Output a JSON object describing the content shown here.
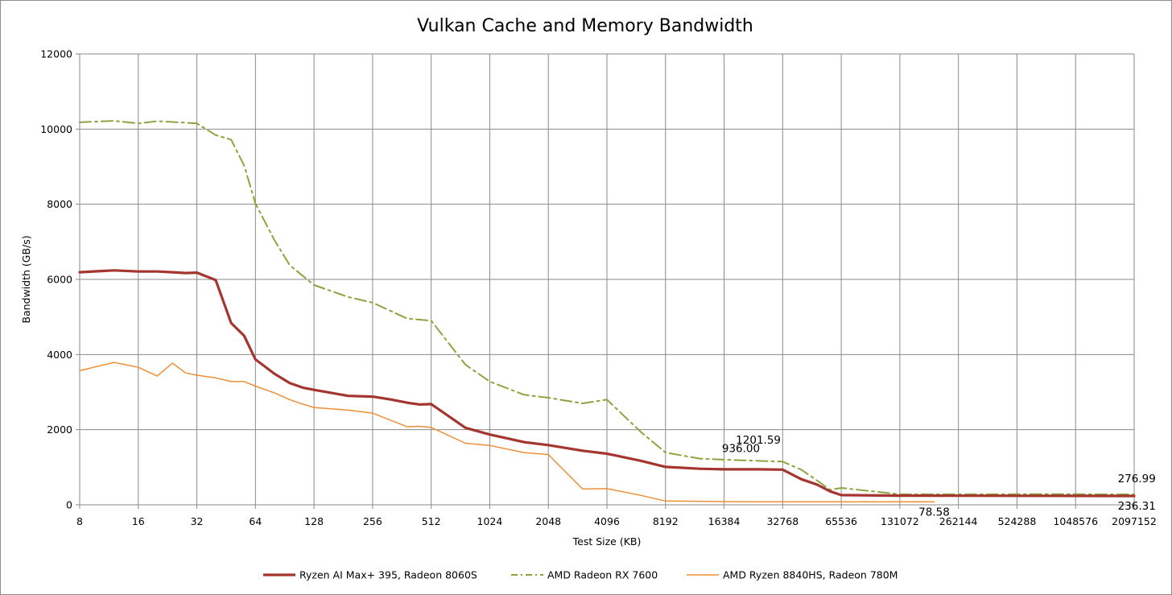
{
  "chart_data": {
    "type": "line",
    "title": "Vulkan Cache and Memory Bandwidth",
    "xlabel": "Test Size (KB)",
    "ylabel": "Bandwidth (GB/s)",
    "xscale": "log2",
    "xlim": [
      8,
      2097152
    ],
    "ylim": [
      0,
      12000
    ],
    "grid": true,
    "legend_position": "bottom",
    "x_ticks": [
      "8",
      "16",
      "32",
      "64",
      "128",
      "256",
      "512",
      "1024",
      "2048",
      "4096",
      "8192",
      "16384",
      "32768",
      "65536",
      "131072",
      "262144",
      "524288",
      "1048576",
      "2097152"
    ],
    "x_tick_values": [
      8,
      16,
      32,
      64,
      128,
      256,
      512,
      1024,
      2048,
      4096,
      8192,
      16384,
      32768,
      65536,
      131072,
      262144,
      524288,
      1048576,
      2097152
    ],
    "y_ticks": [
      "0",
      "2000",
      "4000",
      "6000",
      "8000",
      "10000",
      "12000"
    ],
    "y_tick_values": [
      0,
      2000,
      4000,
      6000,
      8000,
      10000,
      12000
    ],
    "series": [
      {
        "name": "Ryzen AI Max+ 395, Radeon 8060S",
        "color": "#a5352f",
        "style": "solid-thick",
        "points": [
          [
            8,
            6190
          ],
          [
            12,
            6240
          ],
          [
            16,
            6210
          ],
          [
            20,
            6210
          ],
          [
            24,
            6190
          ],
          [
            28,
            6170
          ],
          [
            32,
            6180
          ],
          [
            40,
            5980
          ],
          [
            48,
            4840
          ],
          [
            56,
            4500
          ],
          [
            64,
            3870
          ],
          [
            80,
            3490
          ],
          [
            96,
            3240
          ],
          [
            112,
            3120
          ],
          [
            128,
            3060
          ],
          [
            192,
            2900
          ],
          [
            256,
            2880
          ],
          [
            320,
            2800
          ],
          [
            384,
            2720
          ],
          [
            448,
            2670
          ],
          [
            512,
            2680
          ],
          [
            768,
            2050
          ],
          [
            1024,
            1870
          ],
          [
            1536,
            1670
          ],
          [
            2048,
            1590
          ],
          [
            3072,
            1440
          ],
          [
            4096,
            1360
          ],
          [
            6144,
            1170
          ],
          [
            8192,
            1010
          ],
          [
            12288,
            960
          ],
          [
            16384,
            945
          ],
          [
            24576,
            945
          ],
          [
            32768,
            936
          ],
          [
            40960,
            680
          ],
          [
            49152,
            540
          ],
          [
            57344,
            360
          ],
          [
            65536,
            260
          ],
          [
            131072,
            245
          ],
          [
            262144,
            242
          ],
          [
            524288,
            240
          ],
          [
            1048576,
            238
          ],
          [
            2097152,
            236.31
          ]
        ]
      },
      {
        "name": "AMD Radeon RX 7600",
        "color": "#8aa53f",
        "style": "dash-dot",
        "points": [
          [
            8,
            10180
          ],
          [
            12,
            10220
          ],
          [
            16,
            10150
          ],
          [
            20,
            10210
          ],
          [
            24,
            10190
          ],
          [
            28,
            10170
          ],
          [
            32,
            10150
          ],
          [
            40,
            9840
          ],
          [
            48,
            9720
          ],
          [
            56,
            9030
          ],
          [
            64,
            8020
          ],
          [
            80,
            7050
          ],
          [
            96,
            6380
          ],
          [
            128,
            5850
          ],
          [
            192,
            5530
          ],
          [
            256,
            5380
          ],
          [
            384,
            4960
          ],
          [
            512,
            4900
          ],
          [
            768,
            3730
          ],
          [
            1024,
            3280
          ],
          [
            1536,
            2930
          ],
          [
            2048,
            2850
          ],
          [
            3072,
            2700
          ],
          [
            4096,
            2800
          ],
          [
            6144,
            1930
          ],
          [
            8192,
            1390
          ],
          [
            12288,
            1230
          ],
          [
            16384,
            1201.59
          ],
          [
            24576,
            1170
          ],
          [
            32768,
            1150
          ],
          [
            40960,
            930
          ],
          [
            49152,
            650
          ],
          [
            57344,
            400
          ],
          [
            65536,
            450
          ],
          [
            131072,
            280
          ],
          [
            262144,
            280
          ],
          [
            524288,
            282
          ],
          [
            1048576,
            282
          ],
          [
            2097152,
            276.99
          ]
        ]
      },
      {
        "name": "AMD Ryzen 8840HS, Radeon 780M",
        "color": "#ed8f35",
        "style": "solid-thin",
        "points": [
          [
            8,
            3570
          ],
          [
            12,
            3790
          ],
          [
            16,
            3660
          ],
          [
            20,
            3430
          ],
          [
            24,
            3770
          ],
          [
            28,
            3510
          ],
          [
            32,
            3450
          ],
          [
            40,
            3380
          ],
          [
            48,
            3280
          ],
          [
            56,
            3280
          ],
          [
            64,
            3160
          ],
          [
            80,
            2980
          ],
          [
            96,
            2800
          ],
          [
            112,
            2680
          ],
          [
            128,
            2590
          ],
          [
            192,
            2520
          ],
          [
            256,
            2440
          ],
          [
            384,
            2080
          ],
          [
            448,
            2090
          ],
          [
            512,
            2060
          ],
          [
            768,
            1640
          ],
          [
            1024,
            1580
          ],
          [
            1536,
            1390
          ],
          [
            2048,
            1340
          ],
          [
            3072,
            420
          ],
          [
            4096,
            430
          ],
          [
            6144,
            250
          ],
          [
            8192,
            100
          ],
          [
            12288,
            95
          ],
          [
            16384,
            85
          ],
          [
            24576,
            82
          ],
          [
            32768,
            80
          ],
          [
            65536,
            80
          ],
          [
            131072,
            79
          ],
          [
            196608,
            78.58
          ]
        ]
      }
    ],
    "annotations": [
      {
        "text": "1201.59",
        "x": 24576,
        "y": 1201.59,
        "series": "AMD Radeon RX 7600"
      },
      {
        "text": "936.00",
        "x": 20000,
        "y": 936.0,
        "series": "Ryzen AI Max+ 395, Radeon 8060S"
      },
      {
        "text": "78.58",
        "x": 196608,
        "y": 78.58,
        "series": "AMD Ryzen 8840HS, Radeon 780M"
      },
      {
        "text": "276.99",
        "x": 1600000,
        "y": 276.99,
        "series": "AMD Radeon RX 7600"
      },
      {
        "text": "236.31",
        "x": 1600000,
        "y": 236.31,
        "series": "Ryzen AI Max+ 395, Radeon 8060S"
      }
    ]
  }
}
